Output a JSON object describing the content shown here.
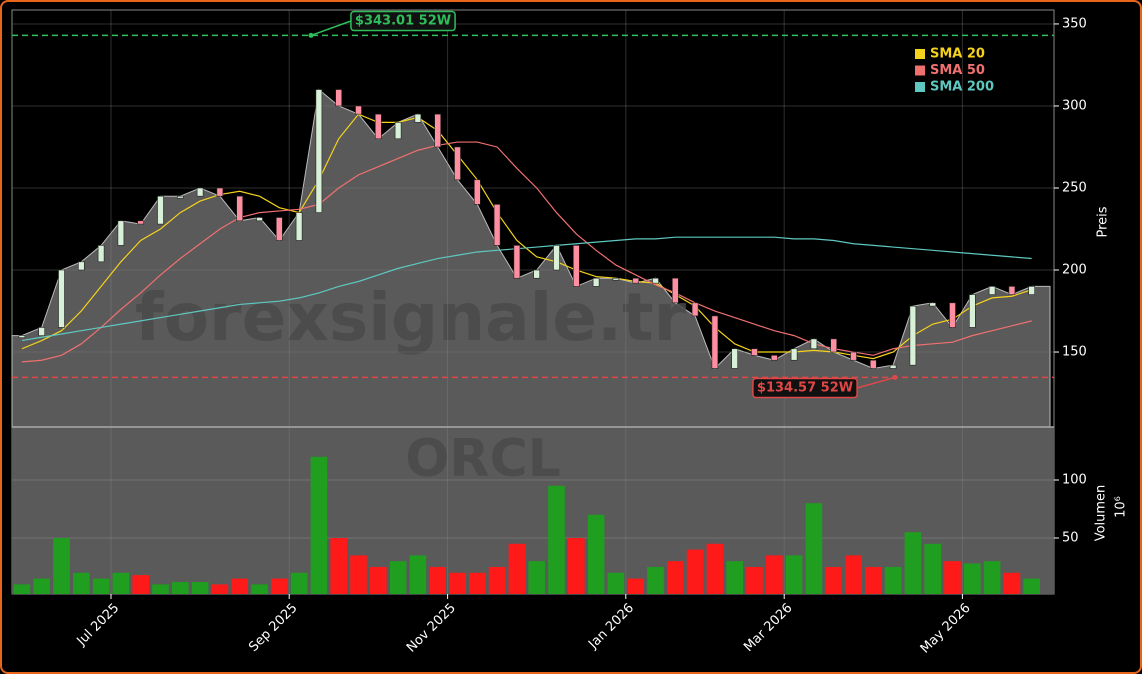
{
  "chart_data": {
    "type": "candlestick",
    "watermark": "forexsignale.tr",
    "symbol": "ORCL",
    "ylabel": "Preis",
    "ylim": [
      104.3,
      358.5
    ],
    "yticks": [
      150,
      200,
      250,
      300,
      350
    ],
    "grid": true,
    "up_color": "#1f9e1f",
    "down_color": "#ff1a1a",
    "area_color": "#5a5a5a",
    "legend": "upper right",
    "categories": [
      null,
      null,
      null,
      null,
      null,
      "Jul 2025",
      null,
      null,
      null,
      null,
      null,
      null,
      null,
      null,
      "Sep 2025",
      null,
      null,
      null,
      null,
      null,
      null,
      null,
      "Nov 2025",
      null,
      null,
      null,
      null,
      null,
      null,
      null,
      null,
      "Jan 2026",
      null,
      null,
      null,
      null,
      null,
      null,
      null,
      "Mar 2026",
      null,
      null,
      null,
      null,
      null,
      null,
      null,
      null,
      "May 2026",
      null,
      null,
      null
    ],
    "values": [
      160,
      165,
      200,
      205,
      215,
      230,
      228,
      245,
      245,
      250,
      245,
      230,
      232,
      218,
      235,
      310,
      300,
      295,
      280,
      290,
      295,
      275,
      255,
      240,
      215,
      195,
      200,
      215,
      190,
      195,
      195,
      192,
      195,
      180,
      172,
      140,
      152,
      148,
      145,
      152,
      158,
      150,
      145,
      140,
      142,
      178,
      180,
      165,
      185,
      190,
      185,
      190
    ],
    "series": [
      {
        "name": "SMA 20",
        "color": "#f5d21b",
        "values": [
          152,
          157,
          163,
          175,
          190,
          205,
          218,
          225,
          235,
          242,
          246,
          248,
          245,
          238,
          235,
          255,
          280,
          295,
          290,
          290,
          293,
          285,
          270,
          255,
          235,
          218,
          208,
          205,
          200,
          196,
          195,
          193,
          192,
          185,
          178,
          165,
          155,
          150,
          150,
          150,
          151,
          150,
          148,
          146,
          150,
          160,
          167,
          170,
          178,
          183,
          184,
          188
        ]
      },
      {
        "name": "SMA 50",
        "color": "#f07070",
        "values": [
          144,
          145,
          148,
          155,
          165,
          176,
          186,
          197,
          207,
          216,
          225,
          232,
          235,
          236,
          237,
          240,
          250,
          258,
          263,
          268,
          273,
          276,
          278,
          278,
          275,
          262,
          250,
          235,
          222,
          212,
          203,
          197,
          191,
          186,
          180,
          175,
          171,
          167,
          163,
          160,
          155,
          152,
          150,
          148,
          152,
          154,
          155,
          156,
          160,
          163,
          166,
          169
        ]
      },
      {
        "name": "SMA 200",
        "color": "#5ec8c0",
        "values": [
          157,
          159,
          161,
          163,
          165,
          167,
          169,
          171,
          173,
          175,
          177,
          179,
          180,
          181,
          183,
          186,
          190,
          193,
          197,
          201,
          204,
          207,
          209,
          211,
          212,
          213,
          214,
          215,
          216,
          217,
          218,
          219,
          219,
          220,
          220,
          220,
          220,
          220,
          220,
          219,
          219,
          218,
          216,
          215,
          214,
          213,
          212,
          211,
          210,
          209,
          208,
          207
        ]
      }
    ],
    "high_52w": {
      "value": 343.01,
      "label": "$343.01 52W",
      "color": "#2fbf5a"
    },
    "low_52w": {
      "value": 134.57,
      "label": "$134.57 52W",
      "color": "#e04848"
    },
    "volume": {
      "label": "Volumen",
      "scale": "10⁶",
      "ylim": [
        1.7,
        145.7
      ],
      "yticks": [
        50,
        100
      ],
      "values": [
        10,
        15,
        50,
        20,
        15,
        20,
        18,
        10,
        12,
        12,
        10,
        15,
        10,
        15,
        20,
        120,
        50,
        35,
        25,
        30,
        35,
        25,
        20,
        20,
        25,
        45,
        30,
        95,
        50,
        70,
        20,
        15,
        25,
        30,
        40,
        45,
        30,
        25,
        35,
        35,
        80,
        25,
        35,
        25,
        25,
        55,
        45,
        30,
        28,
        30,
        20,
        15
      ]
    }
  }
}
